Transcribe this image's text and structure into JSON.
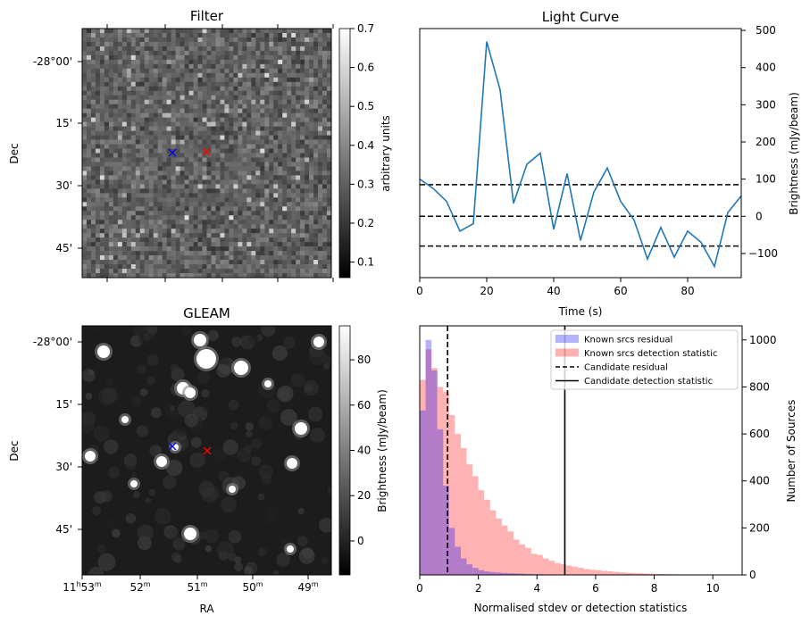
{
  "filter_panel": {
    "title": "Filter",
    "ylabel": "Dec",
    "dec_ticks": [
      "-28°00'",
      "15'",
      "30'",
      "45'"
    ],
    "colorbar_label": "arbitrary units",
    "colorbar_ticks": [
      "0.1",
      "0.2",
      "0.3",
      "0.4",
      "0.5",
      "0.6",
      "0.7"
    ],
    "colorbar_range": [
      0.06,
      0.7
    ],
    "markers": [
      {
        "name": "candidate",
        "color": "#0000ff",
        "symbol": "x"
      },
      {
        "name": "known-source",
        "color": "#ff0000",
        "symbol": "x"
      }
    ]
  },
  "gleam_panel": {
    "title": "GLEAM",
    "ylabel": "Dec",
    "xlabel": "RA",
    "dec_ticks": [
      "-28°00'",
      "15'",
      "30'",
      "45'"
    ],
    "ra_ticks": [
      "11h53m",
      "52m",
      "51m",
      "50m",
      "49m"
    ],
    "ra_tick_main": [
      "11",
      "52",
      "51",
      "50",
      "49"
    ],
    "ra_tick_h": [
      "h",
      "",
      "",
      "",
      ""
    ],
    "ra_tick_m": [
      "53",
      "",
      "",
      "",
      ""
    ],
    "colorbar_label": "Brightness (mJy/beam)",
    "colorbar_ticks": [
      "0",
      "20",
      "40",
      "60",
      "80"
    ],
    "colorbar_range": [
      -15,
      95
    ]
  },
  "chart_data": [
    {
      "type": "line",
      "title": "Light Curve",
      "xlabel": "Time (s)",
      "ylabel": "Brightness (mJy/beam)",
      "xlim": [
        0,
        96
      ],
      "ylim": [
        -165,
        505
      ],
      "x_ticks": [
        0,
        20,
        40,
        60,
        80
      ],
      "y_ticks": [
        -100,
        0,
        100,
        200,
        300,
        400,
        500
      ],
      "series": [
        {
          "color": "#1f77b4",
          "x": [
            0,
            4,
            8,
            12,
            16,
            20,
            24,
            28,
            32,
            36,
            40,
            44,
            48,
            52,
            56,
            60,
            64,
            68,
            72,
            76,
            80,
            84,
            88,
            92,
            96
          ],
          "y": [
            100,
            75,
            40,
            -40,
            -20,
            470,
            340,
            35,
            140,
            170,
            -35,
            115,
            -65,
            65,
            130,
            40,
            -10,
            -115,
            -30,
            -110,
            -40,
            -70,
            -135,
            10,
            55
          ]
        }
      ],
      "hlines": [
        {
          "y": 85,
          "style": "dashed",
          "color": "#000000"
        },
        {
          "y": 0,
          "style": "dashed",
          "color": "#000000"
        },
        {
          "y": -80,
          "style": "dashed",
          "color": "#000000"
        }
      ]
    },
    {
      "type": "histogram",
      "xlabel": "Normalised stdev or detection statistics",
      "ylabel": "Number of Sources",
      "xlim": [
        0,
        11
      ],
      "ylim": [
        0,
        1060
      ],
      "x_ticks": [
        0,
        2,
        4,
        6,
        8,
        10
      ],
      "y_ticks": [
        0,
        200,
        400,
        600,
        800,
        1000
      ],
      "legend_position": "top-right",
      "legend": [
        {
          "label": "Known srcs residual",
          "kind": "patch",
          "color": "#0000ff"
        },
        {
          "label": "Known srcs detection statistic",
          "kind": "patch",
          "color": "#ff0000"
        },
        {
          "label": "Candidate residual",
          "kind": "dashed",
          "color": "#000000"
        },
        {
          "label": "Candidate detection statistic",
          "kind": "solid",
          "color": "#000000"
        }
      ],
      "bin_width": 0.2,
      "series": [
        {
          "name": "Known srcs residual",
          "color": "#0000ff",
          "alpha": 0.3,
          "bin_start": 0,
          "values": [
            700,
            1000,
            870,
            620,
            380,
            200,
            120,
            70,
            45,
            30,
            20,
            15,
            12,
            10,
            8,
            7,
            6,
            5,
            4,
            3,
            3,
            2,
            2,
            2,
            1,
            1,
            1,
            1,
            1,
            1
          ]
        },
        {
          "name": "Known srcs detection statistic",
          "color": "#ff0000",
          "alpha": 0.3,
          "bin_start": 0,
          "values": [
            830,
            960,
            880,
            800,
            780,
            680,
            600,
            540,
            470,
            420,
            360,
            320,
            275,
            240,
            210,
            185,
            150,
            130,
            115,
            90,
            85,
            70,
            60,
            50,
            45,
            40,
            35,
            30,
            25,
            22,
            20,
            17,
            15,
            13,
            11,
            9,
            8,
            7,
            6,
            5,
            4,
            4,
            3,
            3,
            2,
            2,
            2,
            1,
            1,
            1,
            1,
            1
          ]
        }
      ],
      "vlines": [
        {
          "name": "Candidate residual",
          "x": 0.95,
          "style": "dashed",
          "color": "#000000"
        },
        {
          "name": "Candidate detection statistic",
          "x": 4.95,
          "style": "solid",
          "color": "#000000"
        }
      ]
    }
  ]
}
